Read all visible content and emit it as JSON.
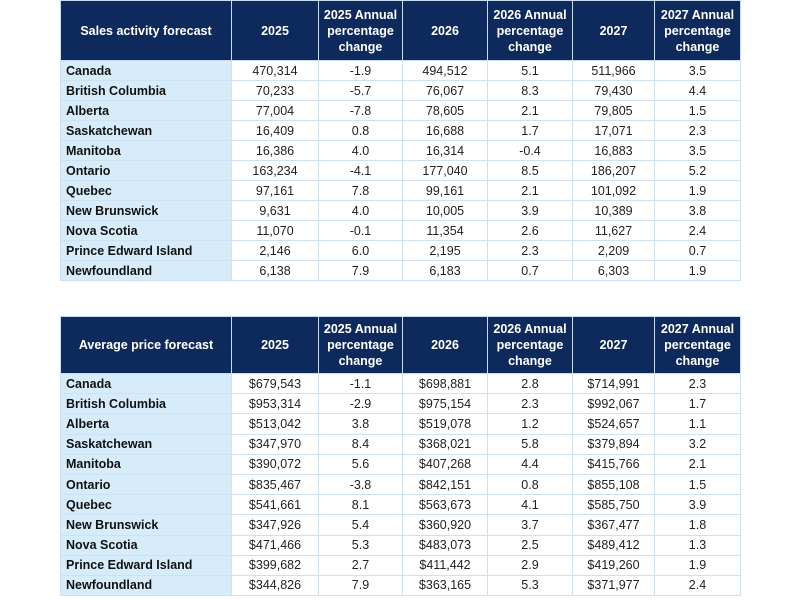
{
  "sales_table": {
    "headers": [
      "Sales activity forecast",
      "2025",
      "2025 Annual percentage change",
      "2026",
      "2026 Annual percentage change",
      "2027",
      "2027 Annual percentage change"
    ],
    "rows": [
      [
        "Canada",
        "470,314",
        "-1.9",
        "494,512",
        "5.1",
        "511,966",
        "3.5"
      ],
      [
        "British Columbia",
        "70,233",
        "-5.7",
        "76,067",
        "8.3",
        "79,430",
        "4.4"
      ],
      [
        "Alberta",
        "77,004",
        "-7.8",
        "78,605",
        "2.1",
        "79,805",
        "1.5"
      ],
      [
        "Saskatchewan",
        "16,409",
        "0.8",
        "16,688",
        "1.7",
        "17,071",
        "2.3"
      ],
      [
        "Manitoba",
        "16,386",
        "4.0",
        "16,314",
        "-0.4",
        "16,883",
        "3.5"
      ],
      [
        "Ontario",
        "163,234",
        "-4.1",
        "177,040",
        "8.5",
        "186,207",
        "5.2"
      ],
      [
        "Quebec",
        "97,161",
        "7.8",
        "99,161",
        "2.1",
        "101,092",
        "1.9"
      ],
      [
        "New Brunswick",
        "9,631",
        "4.0",
        "10,005",
        "3.9",
        "10,389",
        "3.8"
      ],
      [
        "Nova Scotia",
        "11,070",
        "-0.1",
        "11,354",
        "2.6",
        "11,627",
        "2.4"
      ],
      [
        "Prince Edward Island",
        "2,146",
        "6.0",
        "2,195",
        "2.3",
        "2,209",
        "0.7"
      ],
      [
        "Newfoundland",
        "6,138",
        "7.9",
        "6,183",
        "0.7",
        "6,303",
        "1.9"
      ]
    ]
  },
  "price_table": {
    "headers": [
      "Average price forecast",
      "2025",
      "2025 Annual percentage change",
      "2026",
      "2026 Annual percentage change",
      "2027",
      "2027 Annual percentage change"
    ],
    "rows": [
      [
        "Canada",
        "$679,543",
        "-1.1",
        "$698,881",
        "2.8",
        "$714,991",
        "2.3"
      ],
      [
        "British Columbia",
        "$953,314",
        "-2.9",
        "$975,154",
        "2.3",
        "$992,067",
        "1.7"
      ],
      [
        "Alberta",
        "$513,042",
        "3.8",
        "$519,078",
        "1.2",
        "$524,657",
        "1.1"
      ],
      [
        "Saskatchewan",
        "$347,970",
        "8.4",
        "$368,021",
        "5.8",
        "$379,894",
        "3.2"
      ],
      [
        "Manitoba",
        "$390,072",
        "5.6",
        "$407,268",
        "4.4",
        "$415,766",
        "2.1"
      ],
      [
        "Ontario",
        "$835,467",
        "-3.8",
        "$842,151",
        "0.8",
        "$855,108",
        "1.5"
      ],
      [
        "Quebec",
        "$541,661",
        "8.1",
        "$563,673",
        "4.1",
        "$585,750",
        "3.9"
      ],
      [
        "New Brunswick",
        "$347,926",
        "5.4",
        "$360,920",
        "3.7",
        "$367,477",
        "1.8"
      ],
      [
        "Nova Scotia",
        "$471,466",
        "5.3",
        "$483,073",
        "2.5",
        "$489,412",
        "1.3"
      ],
      [
        "Prince Edward Island",
        "$399,682",
        "2.7",
        "$411,442",
        "2.9",
        "$419,260",
        "1.9"
      ],
      [
        "Newfoundland",
        "$344,826",
        "7.9",
        "$363,165",
        "5.3",
        "$371,977",
        "2.4"
      ]
    ]
  },
  "colors": {
    "header_bg": "#0e2a5c",
    "label_bg": "#d6ecfa",
    "border": "#cfe0f0"
  }
}
